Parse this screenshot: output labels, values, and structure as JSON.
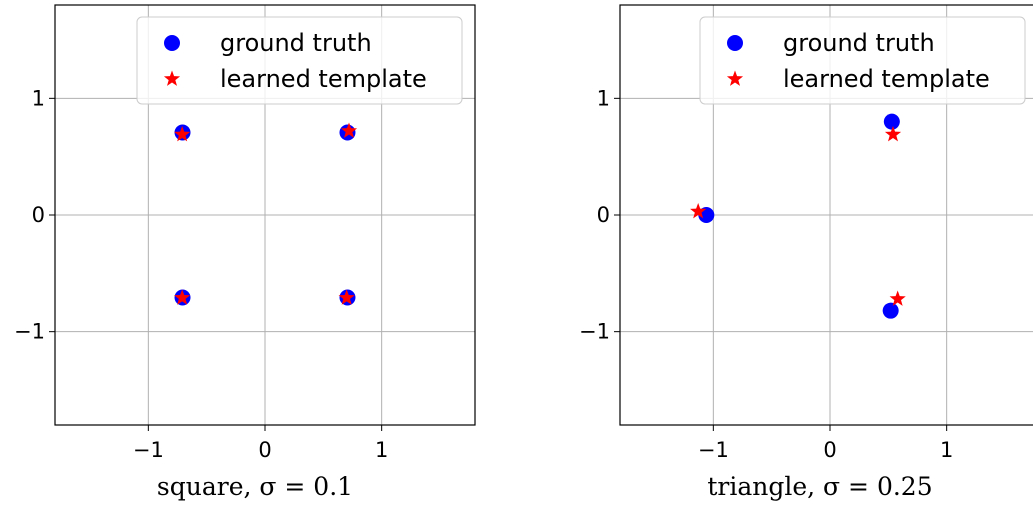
{
  "chart_data": [
    {
      "type": "scatter",
      "caption": "square, σ = 0.1",
      "xlim": [
        -1.8,
        1.8
      ],
      "ylim": [
        -1.8,
        1.8
      ],
      "xticks": [
        -1,
        0,
        1
      ],
      "yticks": [
        -1,
        0,
        1
      ],
      "xtick_labels": [
        "−1",
        "0",
        "1"
      ],
      "ytick_labels": [
        "−1",
        "0",
        "1"
      ],
      "grid": true,
      "legend_position": "top-right",
      "series": [
        {
          "name": "ground truth",
          "marker": "circle",
          "color": "#0000ff",
          "points": [
            [
              -0.707,
              0.707
            ],
            [
              0.707,
              0.707
            ],
            [
              -0.707,
              -0.707
            ],
            [
              0.707,
              -0.707
            ]
          ]
        },
        {
          "name": "learned template",
          "marker": "star",
          "color": "#ff0000",
          "points": [
            [
              -0.71,
              0.69
            ],
            [
              0.72,
              0.72
            ],
            [
              -0.71,
              -0.71
            ],
            [
              0.7,
              -0.71
            ]
          ]
        }
      ]
    },
    {
      "type": "scatter",
      "caption": "triangle, σ = 0.25",
      "xlim": [
        -1.8,
        1.8
      ],
      "ylim": [
        -1.8,
        1.8
      ],
      "xticks": [
        -1,
        0,
        1
      ],
      "yticks": [
        -1,
        0,
        1
      ],
      "xtick_labels": [
        "−1",
        "0",
        "1"
      ],
      "ytick_labels": [
        "−1",
        "0",
        "1"
      ],
      "grid": true,
      "legend_position": "top-right",
      "series": [
        {
          "name": "ground truth",
          "marker": "circle",
          "color": "#0000ff",
          "points": [
            [
              -1.06,
              0.0
            ],
            [
              0.53,
              0.8
            ],
            [
              0.52,
              -0.82
            ]
          ]
        },
        {
          "name": "learned template",
          "marker": "star",
          "color": "#ff0000",
          "points": [
            [
              -1.13,
              0.03
            ],
            [
              0.54,
              0.69
            ],
            [
              0.58,
              -0.72
            ]
          ]
        }
      ]
    }
  ]
}
